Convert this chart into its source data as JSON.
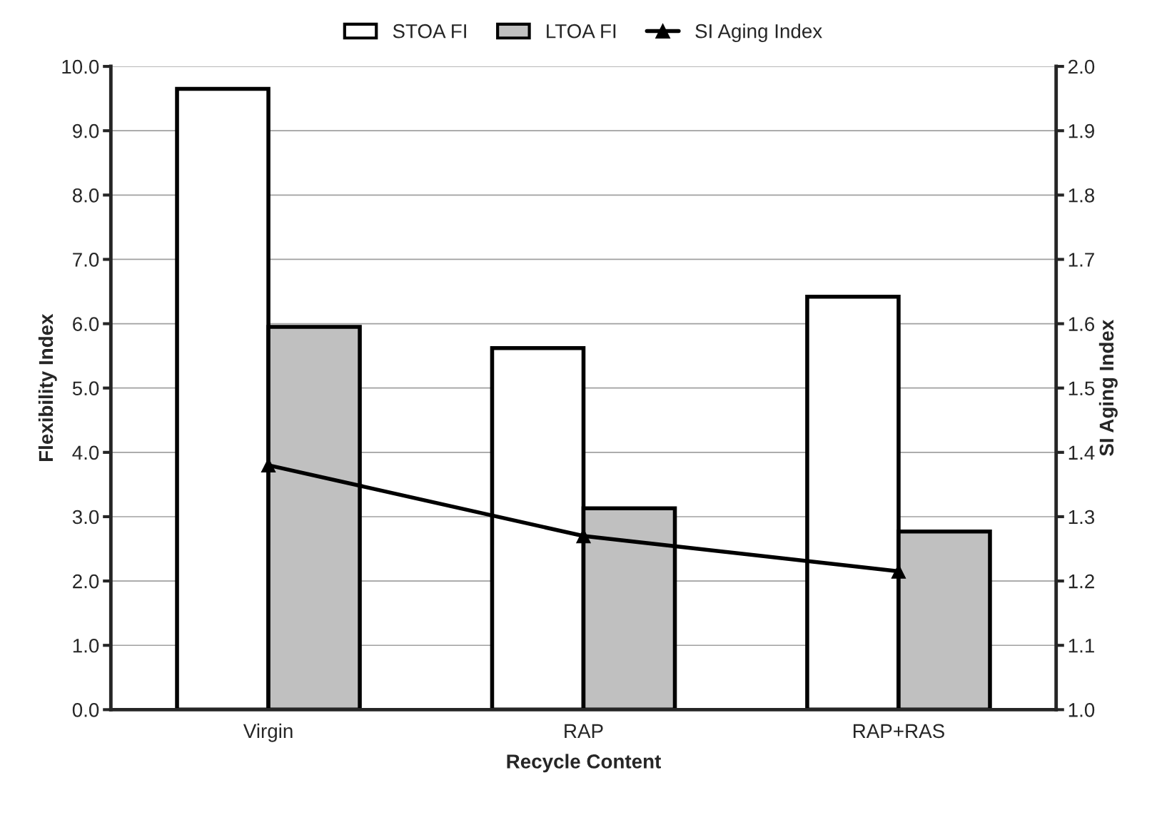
{
  "chart_data": {
    "type": "bar",
    "xlabel": "Recycle Content",
    "ylabel": "Flexibility Index",
    "y2label": "SI Aging Index",
    "categories": [
      "Virgin",
      "RAP",
      "RAP+RAS"
    ],
    "series": [
      {
        "name": "STOA FI",
        "color": "#ffffff",
        "values": [
          9.65,
          5.62,
          6.42
        ]
      },
      {
        "name": "LTOA FI",
        "color": "#c0c0c0",
        "values": [
          5.95,
          3.13,
          2.77
        ]
      },
      {
        "name": "SI Aging Index",
        "type": "line",
        "axis": "y2",
        "color": "#000000",
        "values": [
          1.38,
          1.27,
          1.215
        ],
        "marker": "triangle"
      }
    ],
    "ylim": [
      0,
      10
    ],
    "yticks": [
      {
        "value": 0,
        "label": "0.0"
      },
      {
        "value": 1,
        "label": "1.0"
      },
      {
        "value": 2,
        "label": "2.0"
      },
      {
        "value": 3,
        "label": "3.0"
      },
      {
        "value": 4,
        "label": "4.0"
      },
      {
        "value": 5,
        "label": "5.0"
      },
      {
        "value": 6,
        "label": "6.0"
      },
      {
        "value": 7,
        "label": "7.0"
      },
      {
        "value": 8,
        "label": "8.0"
      },
      {
        "value": 9,
        "label": "9.0"
      },
      {
        "value": 10,
        "label": "10.0"
      }
    ],
    "y2lim": [
      1,
      2
    ],
    "y2ticks": [
      {
        "value": 1,
        "label": "1.0"
      },
      {
        "value": 1.1,
        "label": "1.1"
      },
      {
        "value": 1.2,
        "label": "1.2"
      },
      {
        "value": 1.3,
        "label": "1.3"
      },
      {
        "value": 1.4,
        "label": "1.4"
      },
      {
        "value": 1.5,
        "label": "1.5"
      },
      {
        "value": 1.6,
        "label": "1.6"
      },
      {
        "value": 1.7,
        "label": "1.7"
      },
      {
        "value": 1.8,
        "label": "1.8"
      },
      {
        "value": 1.9,
        "label": "1.9"
      },
      {
        "value": 2,
        "label": "2.0"
      }
    ],
    "grid": "y",
    "legend": "top"
  }
}
